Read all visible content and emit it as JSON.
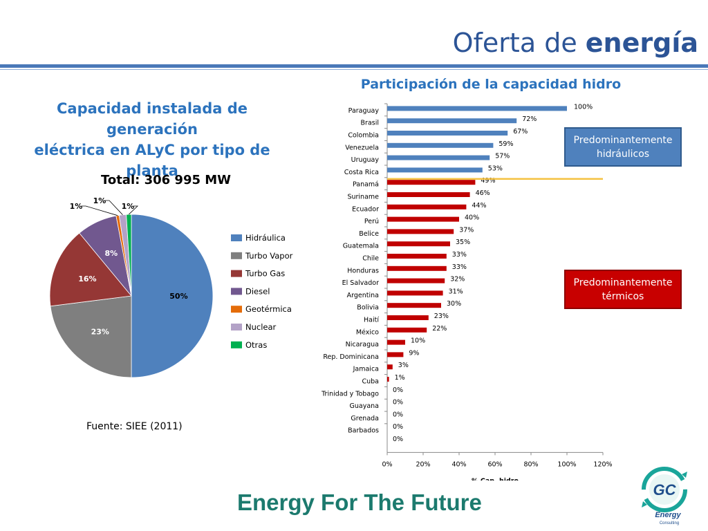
{
  "slide": {
    "title_normal": "Oferta de ",
    "title_bold": "energía",
    "left_heading_line1": "Capacidad instalada de generación",
    "left_heading_line2": "eléctrica en ALyC por tipo de planta",
    "bar_heading": "Participación de la capacidad hidro",
    "source": "Fuente:  SIEE (2011)",
    "tagline": "Energy For The Future",
    "box_hydro": "Predominantemente hidráulicos",
    "box_thermal": "Predominantemente térmicos",
    "logo_initials": "GC",
    "logo_word": "Energy",
    "logo_sub": "Consulting"
  },
  "colors": {
    "hydro_bar": "#4f81bd",
    "thermal_bar": "#c00000",
    "divider_line": "#f5c242",
    "title": "#2c5496",
    "heading": "#2c73bd",
    "tagline": "#1c7a6e"
  },
  "chart_data": [
    {
      "type": "pie",
      "title": "Total: 306 995 MW",
      "legend_position": "right",
      "slices": [
        {
          "label": "Hidráulica",
          "value": 50,
          "value_label": "50%",
          "color": "#4f81bd"
        },
        {
          "label": "Turbo Vapor",
          "value": 23,
          "value_label": "23%",
          "color": "#7f7f7f"
        },
        {
          "label": "Turbo Gas",
          "value": 16,
          "value_label": "16%",
          "color": "#953735"
        },
        {
          "label": "Diesel",
          "value": 8,
          "value_label": "8%",
          "color": "#71588f"
        },
        {
          "label": "Geotérmica",
          "value": 0.6,
          "value_label": "1%",
          "color": "#e46c0a"
        },
        {
          "label": "Nuclear",
          "value": 1.4,
          "value_label": "1%",
          "color": "#b3a2c7"
        },
        {
          "label": "Otras",
          "value": 1,
          "value_label": "1%",
          "color": "#00b050"
        }
      ]
    },
    {
      "type": "bar",
      "orientation": "horizontal",
      "xlabel": "% Cap. hidro",
      "xlim": [
        0,
        120
      ],
      "xticks": [
        "0%",
        "20%",
        "40%",
        "60%",
        "80%",
        "100%",
        "120%"
      ],
      "grid": false,
      "categories": [
        "Paraguay",
        "Brasil",
        "Colombia",
        "Venezuela",
        "Uruguay",
        "Costa Rica",
        "Panamá",
        "Suriname",
        "Ecuador",
        "Perú",
        "Belice",
        "Guatemala",
        "Chile",
        "Honduras",
        "El Salvador",
        "Argentina",
        "Bolivia",
        "Haití",
        "México",
        "Nicaragua",
        "Rep. Dominicana",
        "Jamaica",
        "Cuba",
        "Trinidad y Tobago",
        "Guayana",
        "Grenada",
        "Barbados"
      ],
      "values": [
        100,
        72,
        67,
        59,
        57,
        53,
        49,
        46,
        44,
        40,
        37,
        35,
        33,
        33,
        32,
        31,
        30,
        23,
        22,
        10,
        9,
        3,
        1,
        0,
        0,
        0,
        0
      ],
      "value_labels": [
        "100%",
        "72%",
        "67%",
        "59%",
        "57%",
        "53%",
        "49%",
        "46%",
        "44%",
        "40%",
        "37%",
        "35%",
        "33%",
        "33%",
        "32%",
        "31%",
        "30%",
        "23%",
        "22%",
        "10%",
        "9%",
        "3%",
        "1%",
        "0%",
        "0%",
        "0%",
        "0%"
      ],
      "extra_labels": [
        "0%"
      ],
      "hydro_count": 6
    }
  ]
}
